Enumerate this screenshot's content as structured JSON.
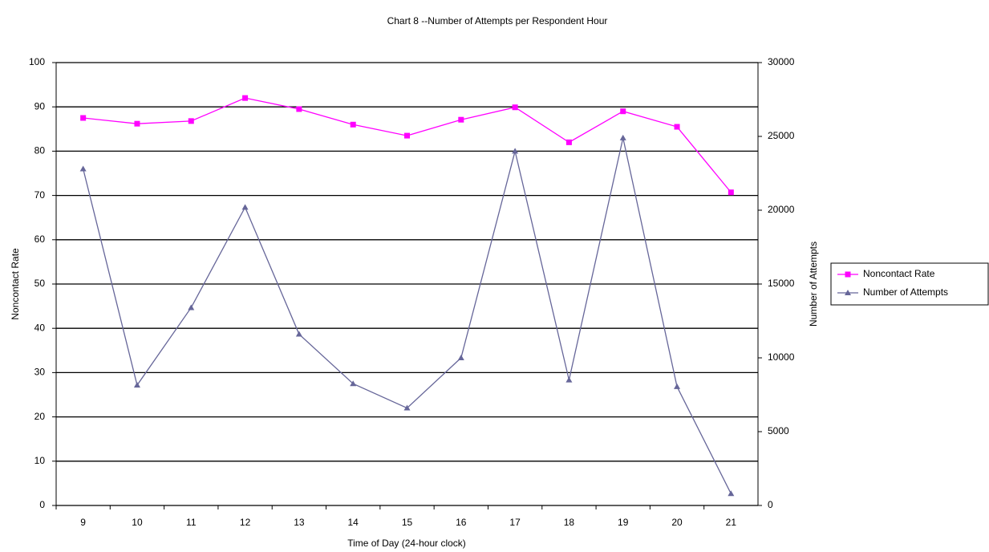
{
  "chart_data": {
    "type": "line",
    "title": "Chart 8 --Number of Attempts per Respondent Hour",
    "x_label": "Time of Day (24-hour clock)",
    "y_label": "Noncontact Rate",
    "y2_label": "Number of Attempts",
    "categories": [
      "9",
      "10",
      "11",
      "12",
      "13",
      "14",
      "15",
      "16",
      "17",
      "18",
      "19",
      "20",
      "21"
    ],
    "series": [
      {
        "name": "Noncontact Rate",
        "color": "#ff00ff",
        "marker": "square",
        "values": [
          87.5,
          86.2,
          86.8,
          92,
          89.5,
          86,
          83.5,
          87.1,
          89.9,
          82,
          89,
          85.5,
          70.7
        ]
      },
      {
        "name": "Number of Attempts",
        "color": "#666699",
        "marker": "triangle",
        "axis": "y2",
        "values": [
          22800,
          8150,
          13400,
          20200,
          11600,
          8250,
          6600,
          10000,
          24000,
          8500,
          24900,
          8050,
          800
        ]
      }
    ],
    "ylim": [
      0,
      100
    ],
    "yticks": [
      0,
      10,
      20,
      30,
      40,
      50,
      60,
      70,
      80,
      90,
      100
    ],
    "y2lim": [
      0,
      30000
    ],
    "y2ticks": [
      0,
      5000,
      10000,
      15000,
      20000,
      25000,
      30000
    ],
    "grid": true,
    "legend": "right"
  }
}
